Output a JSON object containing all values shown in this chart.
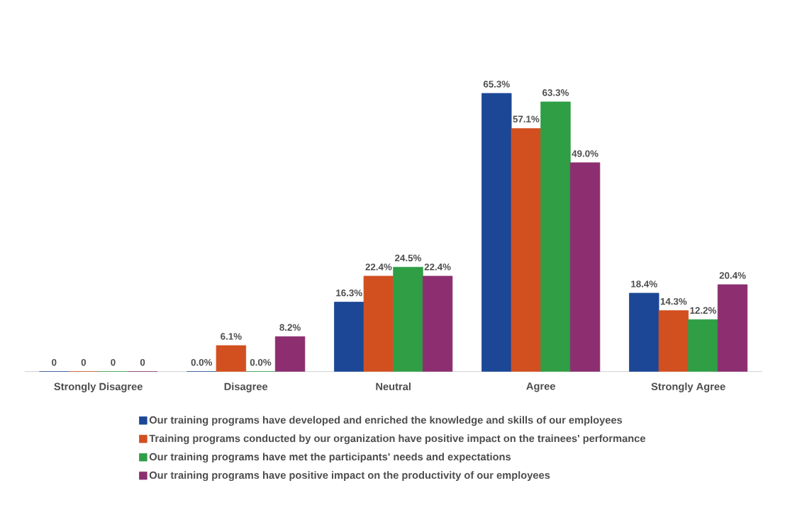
{
  "chart_data": {
    "type": "bar",
    "categories": [
      "Strongly Disagree",
      "Disagree",
      "Neutral",
      "Agree",
      "Strongly Agree"
    ],
    "legend": "bottom",
    "series": [
      {
        "name": "Our training programs have developed and enriched the knowledge and skills of our employees",
        "color": "#1c4796",
        "values": [
          0,
          0,
          16.3,
          65.3,
          18.4
        ],
        "value_labels": [
          "0",
          "0.0%",
          "16.3%",
          "65.3%",
          "18.4%"
        ]
      },
      {
        "name": "Training programs conducted by our organization have positive impact on the trainees' performance",
        "color": "#d24f20",
        "values": [
          0,
          6.1,
          22.4,
          57.1,
          14.3
        ],
        "value_labels": [
          "0",
          "6.1%",
          "22.4%",
          "57.1%",
          "14.3%"
        ]
      },
      {
        "name": "Our training programs have met the participants' needs and expectations",
        "color": "#2f9e45",
        "values": [
          0,
          0,
          24.5,
          63.3,
          12.2
        ],
        "value_labels": [
          "0",
          "0.0%",
          "24.5%",
          "63.3%",
          "12.2%"
        ]
      },
      {
        "name": "Our training programs have positive impact on the productivity of our employees",
        "color": "#8c2e70",
        "values": [
          0,
          8.2,
          22.4,
          49.0,
          20.4
        ],
        "value_labels": [
          "0",
          "8.2%",
          "22.4%",
          "49.0%",
          "20.4%"
        ]
      }
    ]
  }
}
